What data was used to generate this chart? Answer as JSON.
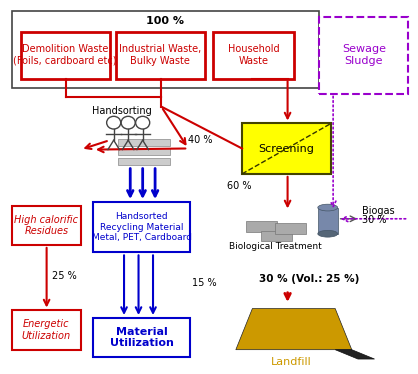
{
  "bg_color": "#ffffff",
  "top_label": "100 %",
  "demolition_label": "Demolition Waste\n(Foils, cardboard etc)",
  "industrial_label": "Industrial Waste,\nBulky Waste",
  "household_label": "Household\nWaste",
  "sewage_label": "Sewage\nSludge",
  "screening_label": "Screening",
  "high_cal_label": "High calorific\nResidues",
  "handsorted_label": "Handsorted\nRecycling Material\nMetal, PET, Cardboard",
  "energetic_label": "Energetic\nUtilization",
  "material_label": "Material\nUtilization",
  "red": "#cc0000",
  "blue": "#0000cc",
  "purple": "#9900cc",
  "gold": "#cc9900",
  "gray": "#888888",
  "black": "#000000",
  "yellow": "#ffff00"
}
